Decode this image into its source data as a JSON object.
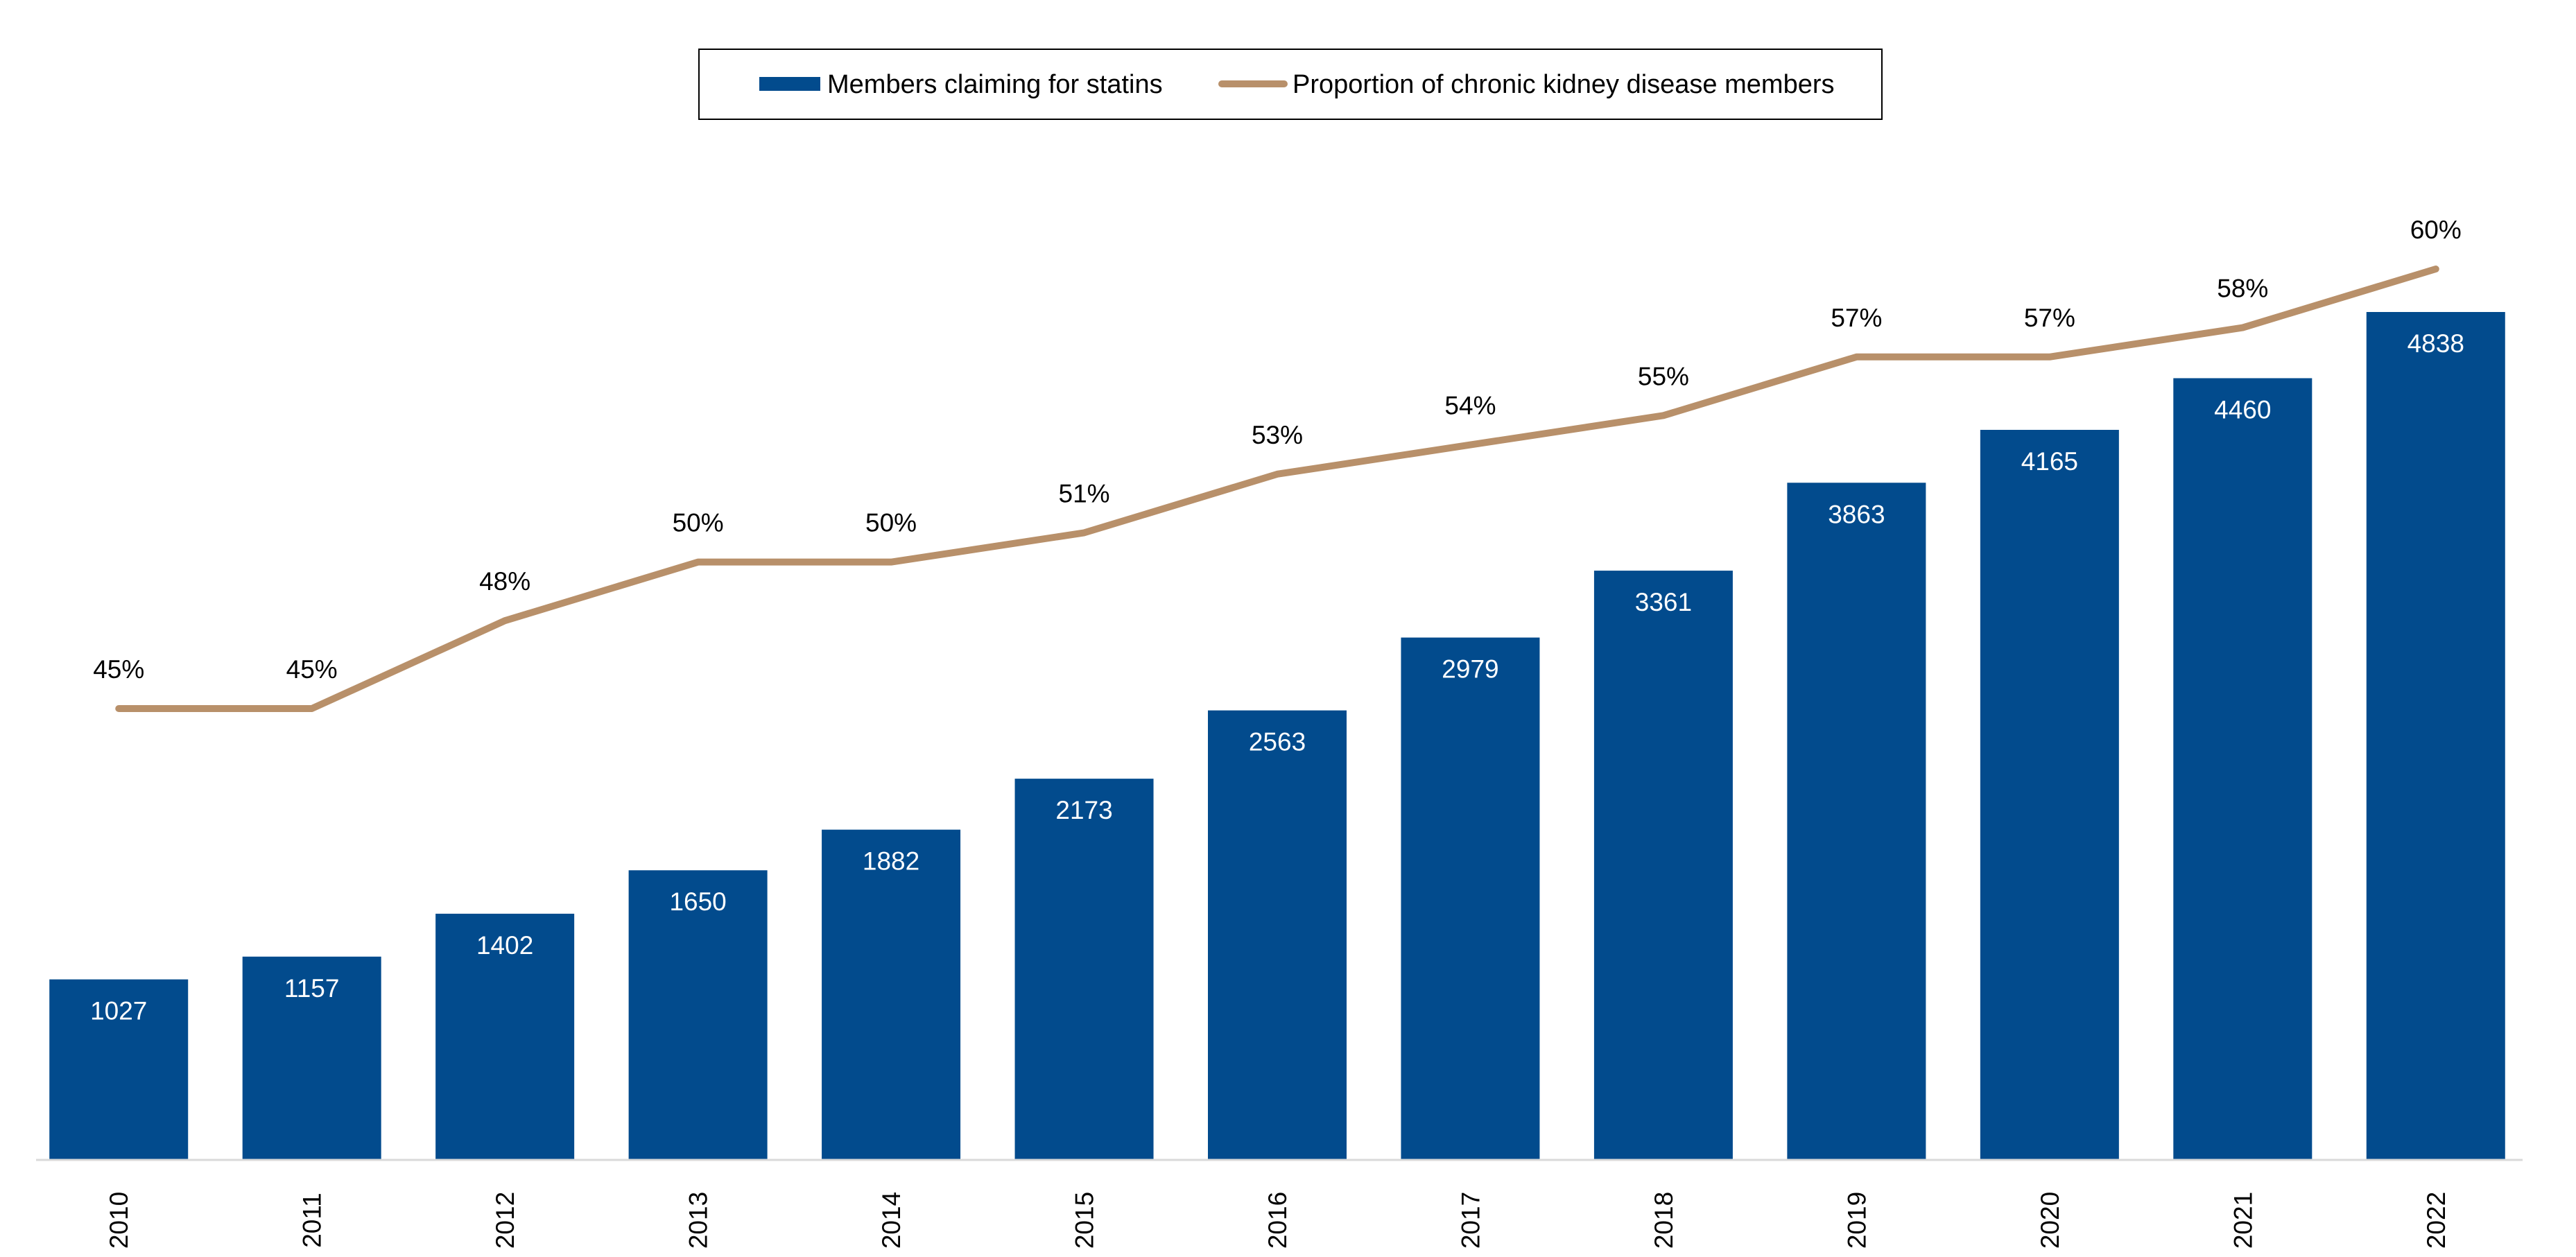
{
  "chart_data": {
    "type": "bar",
    "categories": [
      "2010",
      "2011",
      "2012",
      "2013",
      "2014",
      "2015",
      "2016",
      "2017",
      "2018",
      "2019",
      "2020",
      "2021",
      "2022"
    ],
    "series": [
      {
        "name": "Members claiming for statins",
        "type": "bar",
        "axis": "left",
        "values": [
          1027,
          1157,
          1402,
          1650,
          1882,
          2173,
          2563,
          2979,
          3361,
          3863,
          4165,
          4460,
          4838
        ],
        "labels": [
          "1027",
          "1157",
          "1402",
          "1650",
          "1882",
          "2173",
          "2563",
          "2979",
          "3361",
          "3863",
          "4165",
          "4460",
          "4838"
        ]
      },
      {
        "name": "Proportion of chronic kidney disease members",
        "type": "line",
        "axis": "right",
        "values": [
          45,
          45,
          48,
          50,
          50,
          51,
          53,
          54,
          55,
          57,
          57,
          58,
          60
        ],
        "labels": [
          "45%",
          "45%",
          "48%",
          "50%",
          "50%",
          "51%",
          "53%",
          "54%",
          "55%",
          "57%",
          "57%",
          "58%",
          "60%"
        ]
      }
    ],
    "bar_axis_range": [
      0,
      5000
    ],
    "line_axis_range": [
      20,
      67
    ],
    "title": "",
    "xlabel": "",
    "ylabel": "",
    "legend_position": "top-center",
    "grid": false,
    "colors": {
      "bar": "#024B8D",
      "line": "#B8906A",
      "axis": "#D9D9D9"
    }
  }
}
